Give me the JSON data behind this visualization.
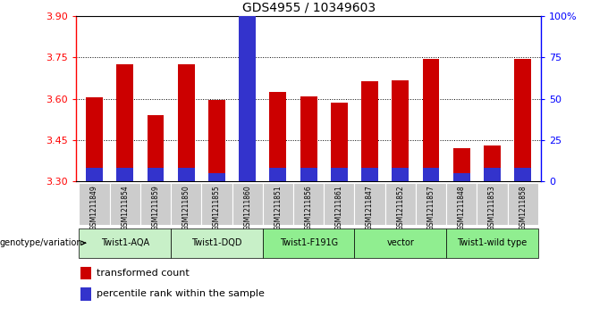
{
  "title": "GDS4955 / 10349603",
  "samples": [
    "GSM1211849",
    "GSM1211854",
    "GSM1211859",
    "GSM1211850",
    "GSM1211855",
    "GSM1211860",
    "GSM1211851",
    "GSM1211856",
    "GSM1211861",
    "GSM1211847",
    "GSM1211852",
    "GSM1211857",
    "GSM1211848",
    "GSM1211853",
    "GSM1211858"
  ],
  "red_values": [
    3.605,
    3.725,
    3.54,
    3.725,
    3.595,
    3.33,
    3.625,
    3.608,
    3.585,
    3.665,
    3.668,
    3.745,
    3.42,
    3.43,
    3.745
  ],
  "blue_percentiles": [
    8,
    8,
    8,
    8,
    5,
    100,
    8,
    8,
    8,
    8,
    8,
    8,
    5,
    8,
    8
  ],
  "groups": [
    {
      "label": "Twist1-AQA",
      "start": 0,
      "end": 3,
      "light": true
    },
    {
      "label": "Twist1-DQD",
      "start": 3,
      "end": 6,
      "light": true
    },
    {
      "label": "Twist1-F191G",
      "start": 6,
      "end": 9,
      "light": false
    },
    {
      "label": "vector",
      "start": 9,
      "end": 12,
      "light": false
    },
    {
      "label": "Twist1-wild type",
      "start": 12,
      "end": 15,
      "light": false
    }
  ],
  "ymin": 3.3,
  "ymax": 3.9,
  "yticks": [
    3.3,
    3.45,
    3.6,
    3.75,
    3.9
  ],
  "y2ticks": [
    0,
    25,
    50,
    75,
    100
  ],
  "y2labels": [
    "0",
    "25",
    "50",
    "75",
    "100%"
  ],
  "bar_color": "#cc0000",
  "blue_color": "#3333cc",
  "bar_width": 0.55,
  "legend_red": "transformed count",
  "legend_blue": "percentile rank within the sample",
  "genotype_label": "genotype/variation",
  "light_green": "#c8f0c8",
  "dark_green": "#90ee90",
  "gray_color": "#cccccc"
}
